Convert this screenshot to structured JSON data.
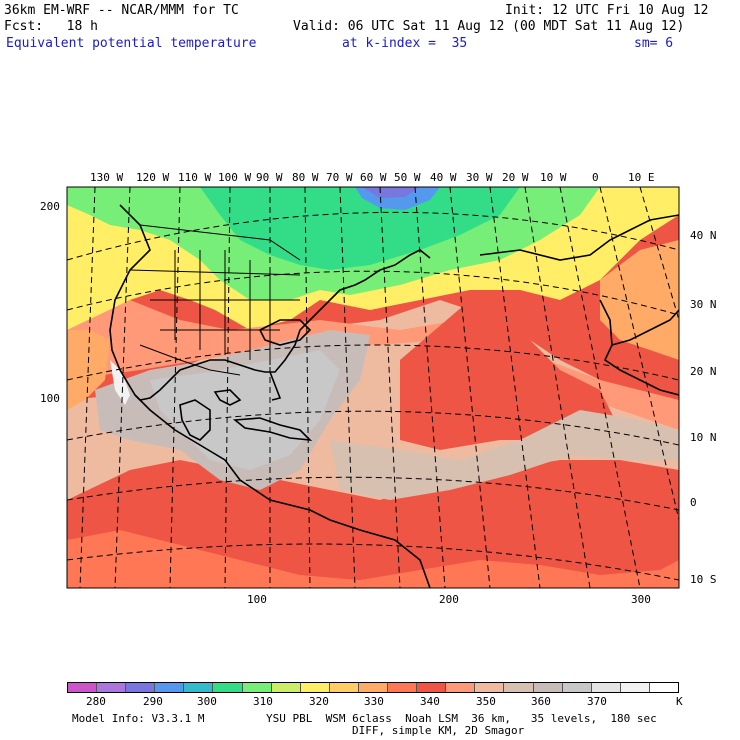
{
  "header": {
    "model_line": "36km EM-WRF -- NCAR/MMM for TC",
    "init_line": "Init: 12 UTC Fri 10 Aug 12",
    "fcst_line": "Fcst:   18 h",
    "valid_line": "Valid: 06 UTC Sat 11 Aug 12 (00 MDT Sat 11 Aug 12)",
    "field_name": "Equivalent potential temperature",
    "level_text": "at k-index =  35",
    "smooth_text": "sm= 6"
  },
  "map": {
    "longitude_labels": [
      "130 W",
      "120 W",
      "110 W",
      "100 W",
      "90 W",
      "80 W",
      "70 W",
      "60 W",
      "50 W",
      "40 W",
      "30 W",
      "20 W",
      "10 W",
      "0",
      "10 E"
    ],
    "latitude_labels": [
      "40 N",
      "30 N",
      "20 N",
      "10 N",
      "0",
      "10 S"
    ],
    "grid_y_labels": [
      "200",
      "100"
    ],
    "grid_x_labels": [
      "100",
      "200",
      "300"
    ]
  },
  "colorbar": {
    "colors": [
      "#cc55cc",
      "#aa77dd",
      "#7777dd",
      "#5599ee",
      "#33bbcc",
      "#33dd88",
      "#77ee77",
      "#ccee66",
      "#ffee66",
      "#ffcc66",
      "#ffaa66",
      "#ff7755",
      "#ee5544",
      "#ff9977",
      "#eebba0",
      "#d8c0b0",
      "#c8bcb8",
      "#c8c8c8",
      "#e4e4e4",
      "#f2f2f2",
      "#ffffff"
    ],
    "labels": [
      "280",
      "290",
      "300",
      "310",
      "320",
      "330",
      "340",
      "350",
      "360",
      "370",
      "K"
    ],
    "units_index": 10
  },
  "footer": {
    "model_info": "Model Info: V3.3.1 M",
    "physics_line": "YSU PBL  WSM 6class  Noah LSM  36 km,   35 levels,  180 sec",
    "diff_line": "DIFF, simple KM, 2D Smagor"
  }
}
